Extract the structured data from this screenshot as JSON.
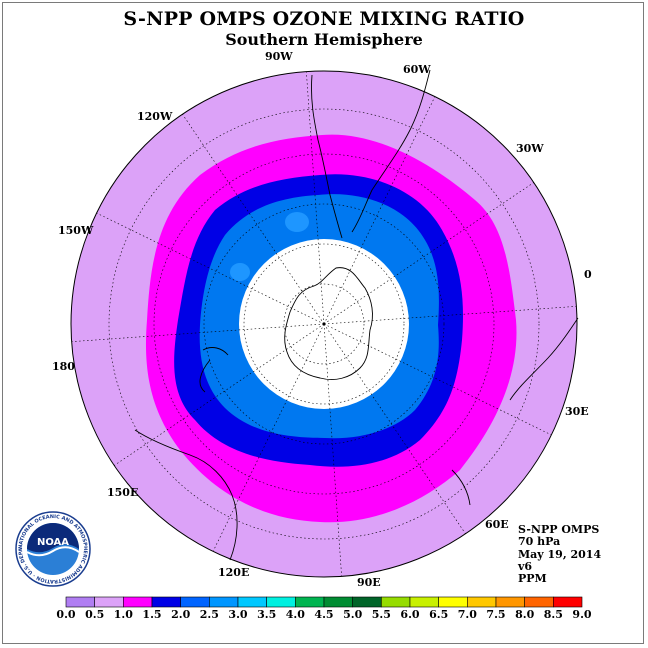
{
  "header": {
    "title": "S-NPP OMPS OZONE MIXING RATIO",
    "subtitle": "Southern Hemisphere"
  },
  "longitude_labels": [
    "90W",
    "60W",
    "30W",
    "0",
    "30E",
    "60E",
    "90E",
    "120E",
    "150E",
    "180",
    "150W",
    "120W"
  ],
  "info": {
    "satellite": "S-NPP OMPS",
    "level": "70 hPa",
    "date": "May 19, 2014",
    "version": "v6",
    "units": "PPM"
  },
  "logo": {
    "text": "NOAA",
    "ring_text": "NATIONAL OCEANIC AND ATMOSPHERIC ADMINISTRATION · U.S. DEPARTMENT OF COMMERCE"
  },
  "colorbar": {
    "ticks": [
      "0.0",
      "0.5",
      "1.0",
      "1.5",
      "2.0",
      "2.5",
      "3.0",
      "3.5",
      "4.0",
      "4.5",
      "5.0",
      "5.5",
      "6.0",
      "6.5",
      "7.0",
      "7.5",
      "8.0",
      "8.5",
      "9.0"
    ],
    "colors": [
      "#b07ef2",
      "#dca2f8",
      "#ff00ff",
      "#0000e6",
      "#0064ff",
      "#0096ff",
      "#00c8ff",
      "#00f0e0",
      "#00b450",
      "#008c32",
      "#006428",
      "#96dc00",
      "#c8f000",
      "#ffff00",
      "#ffc800",
      "#ff9600",
      "#ff6400",
      "#ff0000",
      "#d20000",
      "#8b4513"
    ]
  },
  "colors": {
    "outer_band": "#dca2f8",
    "magenta_band": "#ff00ff",
    "dark_blue_band": "#0000e6",
    "mid_blue_band": "#0078f0",
    "light_blue_patch": "#1e96ff",
    "missing_data": "#ffffff"
  }
}
